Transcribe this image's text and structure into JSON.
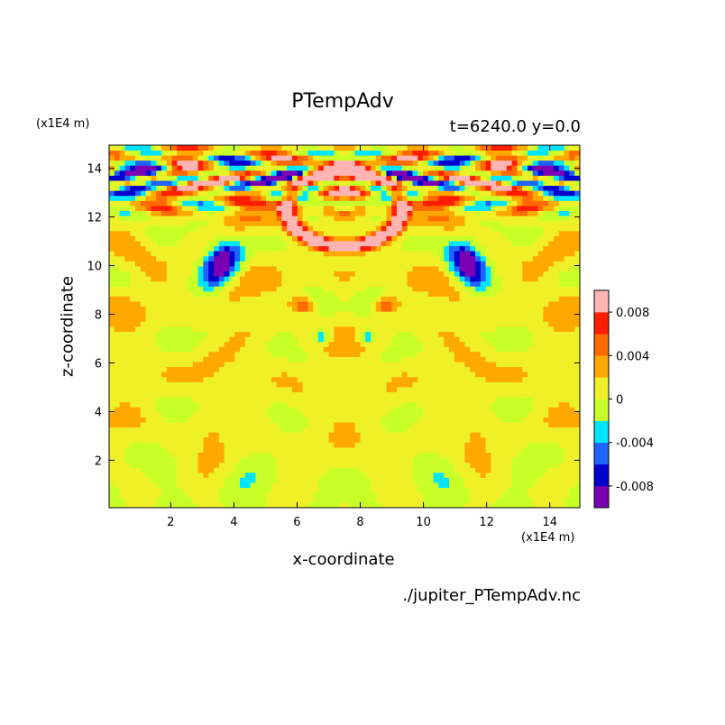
{
  "chart_data": {
    "type": "heatmap",
    "title": "PTempAdv",
    "subtitle": "t=6240.0 y=0.0",
    "xlabel": "x-coordinate",
    "ylabel": "z-coordinate",
    "x_unit": "(x1E4 m)",
    "y_unit": "(x1E4 m)",
    "footer": "./jupiter_PTempAdv.nc",
    "xlim": [
      0.05,
      14.95
    ],
    "ylim": [
      0.05,
      14.95
    ],
    "xticks": [
      2,
      4,
      6,
      8,
      10,
      12,
      14
    ],
    "yticks": [
      2,
      4,
      6,
      8,
      10,
      12,
      14
    ],
    "colorbar": {
      "levels": [
        -0.01,
        -0.008,
        -0.006,
        -0.004,
        -0.002,
        0,
        0.002,
        0.004,
        0.006,
        0.008,
        0.01
      ],
      "colors": [
        "#7b00b4",
        "#0000cd",
        "#1e64ff",
        "#00e5ff",
        "#c8ff28",
        "#f0f028",
        "#ffa800",
        "#ff6a00",
        "#ff1e00",
        "#ffb4b4"
      ],
      "tick_labels": [
        "0.008",
        "0.004",
        "0",
        "-0.004",
        "-0.008"
      ],
      "tick_values": [
        0.008,
        0.004,
        0,
        -0.004,
        -0.008
      ]
    }
  }
}
